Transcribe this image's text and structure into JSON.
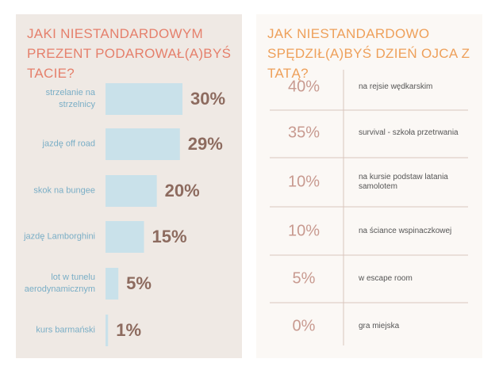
{
  "chart_data": [
    {
      "type": "bar",
      "title": "JAKI NIESTANDARDOWYM PREZENT PODAROWAŁ(A)BYŚ TACIE?",
      "categories": [
        "strzelanie na strzelnicy",
        "jazdę off road",
        "skok na bungee",
        "jazdę Lamborghini",
        "lot w tunelu aerodynamicznym",
        "kurs barmański"
      ],
      "values": [
        30,
        29,
        20,
        15,
        5,
        1
      ],
      "value_labels": [
        "30%",
        "29%",
        "20%",
        "15%",
        "5%",
        "1%"
      ],
      "color": "#c9e1ea"
    },
    {
      "type": "table",
      "title": "JAK NIESTANDARDOWO SPĘDZIŁ(A)BYŚ DZIEŃ OJCA Z TATĄ?",
      "categories": [
        "na rejsie wędkarskim",
        "survival - szkoła przetrwania",
        "na kursie podstaw latania samolotem",
        "na ściance wspinaczkowej",
        "w escape room",
        "gra miejska"
      ],
      "values": [
        40,
        35,
        10,
        10,
        5,
        0
      ],
      "value_labels": [
        "40%",
        "35%",
        "10%",
        "10%",
        "5%",
        "0%"
      ]
    }
  ]
}
